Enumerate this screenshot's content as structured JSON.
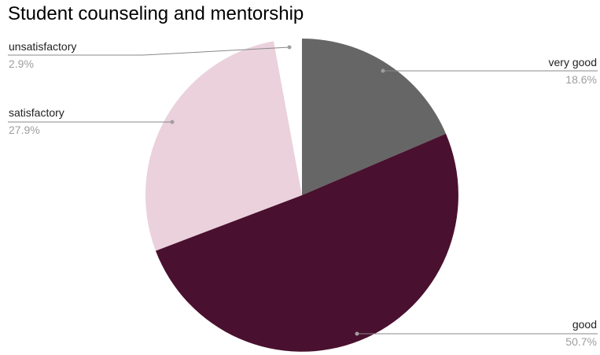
{
  "chart_data": {
    "type": "pie",
    "title": "Student counseling and mentorship",
    "slices": [
      {
        "label": "very good",
        "value": 18.6,
        "display": "18.6%",
        "color": "#666666",
        "side": "right"
      },
      {
        "label": "good",
        "value": 50.7,
        "display": "50.7%",
        "color": "#4a102f",
        "side": "right"
      },
      {
        "label": "satisfactory",
        "value": 27.9,
        "display": "27.9%",
        "color": "#ead1dc",
        "side": "left"
      },
      {
        "label": "unsatisfactory",
        "value": 2.9,
        "display": "2.9%",
        "color": "#ffffff",
        "side": "left"
      }
    ],
    "start_angle": "12 o'clock",
    "direction": "clockwise",
    "legend": "none"
  }
}
